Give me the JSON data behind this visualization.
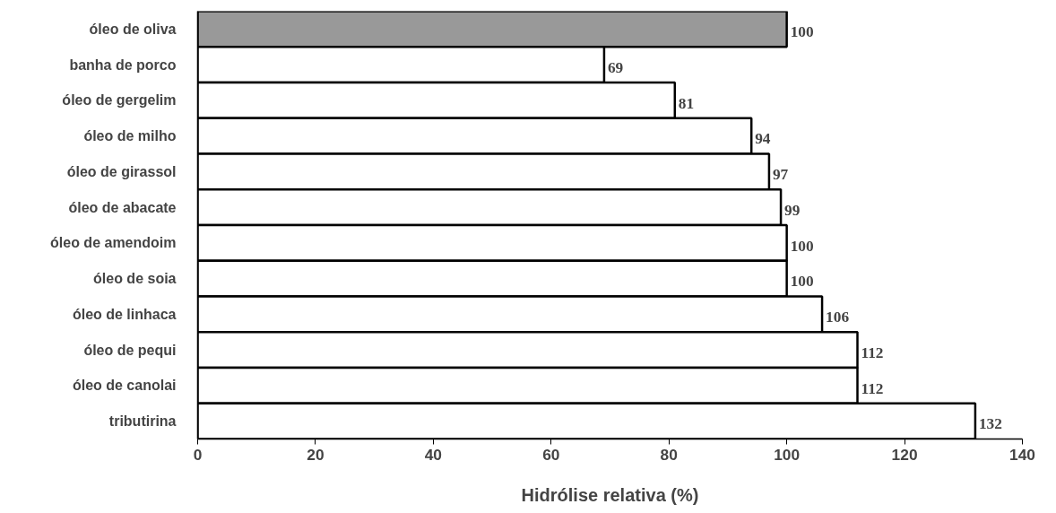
{
  "chart_data": {
    "type": "bar",
    "orientation": "horizontal",
    "xlabel": "Hidrólise relativa (%)",
    "categories": [
      "óleo de oliva",
      "banha de porco",
      "óleo de gergelim",
      "óleo de milho",
      "óleo de girassol",
      "óleo de abacate",
      "óleo de amendoim",
      "óleo de soia",
      "óleo de linhaca",
      "óleo de pequi",
      "óleo de canolai",
      "tributirina"
    ],
    "values": [
      100,
      69,
      81,
      94,
      97,
      99,
      100,
      100,
      106,
      112,
      112,
      132
    ],
    "colors": [
      "#999999",
      "#ffffff",
      "#ffffff",
      "#ffffff",
      "#ffffff",
      "#ffffff",
      "#ffffff",
      "#ffffff",
      "#ffffff",
      "#ffffff",
      "#ffffff",
      "#ffffff"
    ],
    "xlim": [
      0,
      140
    ],
    "xticks": [
      0,
      20,
      40,
      60,
      80,
      100,
      120,
      140
    ],
    "grid": false,
    "data_labels": true
  }
}
